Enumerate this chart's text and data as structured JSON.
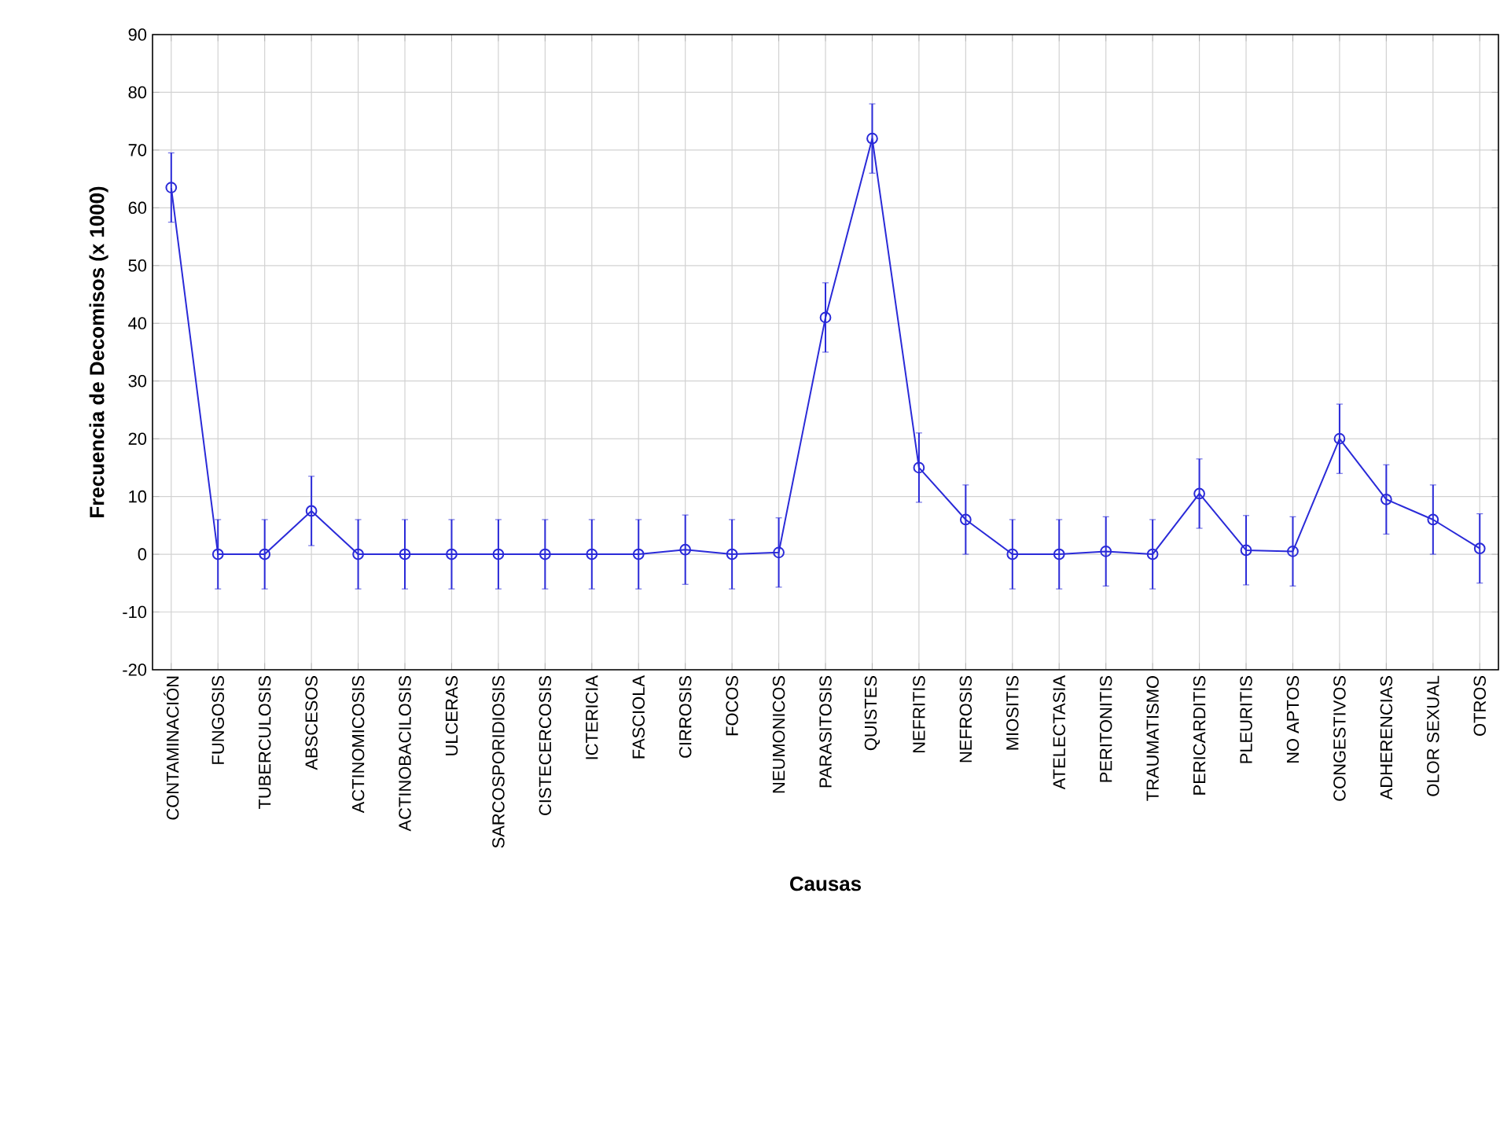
{
  "chart_data": {
    "type": "line",
    "xlabel": "Causas",
    "ylabel": "Frecuencia de Decomisos (x 1000)",
    "categories": [
      "CONTAMINACIÓN",
      "FUNGOSIS",
      "TUBERCULOSIS",
      "ABSCESOS",
      "ACTINOMICOSIS",
      "ACTINOBACILOSIS",
      "ULCERAS",
      "SARCOSPORIDIOSIS",
      "CISTECERCOSIS",
      "ICTERICIA",
      "FASCIOLA",
      "CIRROSIS",
      "FOCOS",
      "NEUMONICOS",
      "PARASITOSIS",
      "QUISTES",
      "NEFRITIS",
      "NEFROSIS",
      "MIOSITIS",
      "ATELECTASIA",
      "PERITONITIS",
      "TRAUMATISMO",
      "PERICARDITIS",
      "PLEURITIS",
      "NO APTOS",
      "CONGESTIVOS",
      "ADHERENCIAS",
      "OLOR SEXUAL",
      "OTROS"
    ],
    "series": [
      {
        "color": "#2a2ad8",
        "values": [
          63.5,
          0,
          0,
          7.5,
          0,
          0,
          0,
          0,
          0,
          0,
          0,
          0.8,
          0,
          0.3,
          41,
          72,
          15,
          6,
          0,
          0,
          0.5,
          0,
          10.5,
          0.7,
          0.5,
          20,
          9.5,
          6,
          1
        ],
        "errors": [
          6,
          6,
          6,
          6,
          6,
          6,
          6,
          6,
          6,
          6,
          6,
          6,
          6,
          6,
          6,
          6,
          6,
          6,
          6,
          6,
          6,
          6,
          6,
          6,
          6,
          6,
          6,
          6,
          6
        ]
      }
    ],
    "ylim": [
      -20,
      90
    ],
    "yticks": [
      -20,
      -10,
      0,
      10,
      20,
      30,
      40,
      50,
      60,
      70,
      80,
      90
    ],
    "grid": true,
    "marker": "circle",
    "line_style": "solid"
  }
}
